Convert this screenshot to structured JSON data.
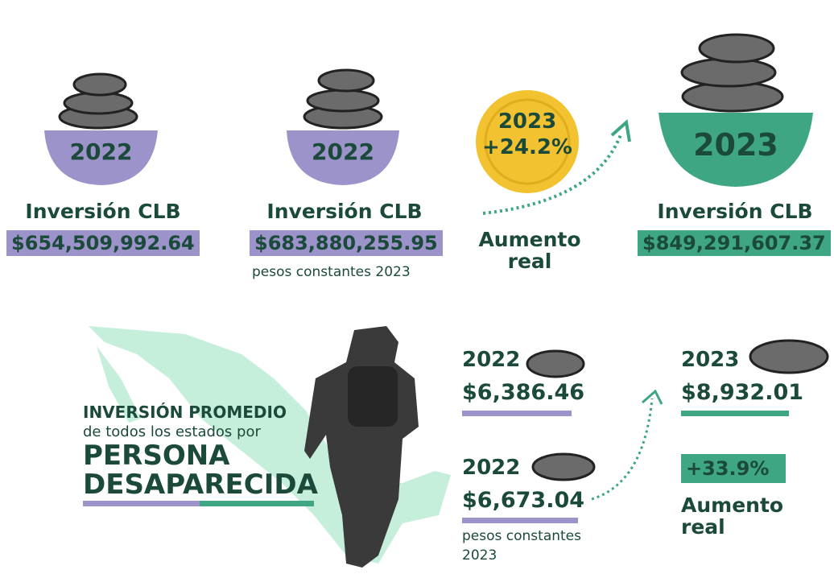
{
  "top": [
    {
      "year": "2022",
      "label": "Inversión CLB",
      "amount": "$654,509,992.64"
    },
    {
      "year": "2022",
      "label": "Inversión CLB",
      "amount": "$683,880,255.95",
      "note": "pesos constantes 2023"
    },
    {
      "year": "2023",
      "change": "+24.2%",
      "label": "Aumento real"
    },
    {
      "year": "2023",
      "label": "Inversión CLB",
      "amount": "$849,291,607.37"
    }
  ],
  "bottom": {
    "title": [
      "INVERSIÓN PROMEDIO",
      "de todos los estados por",
      "PERSONA",
      "DESAPARECIDA"
    ],
    "items": [
      {
        "year": "2022",
        "amount": "$6,386.46"
      },
      {
        "year": "2022",
        "amount": "$6,673.04",
        "note": "pesos constantes 2023"
      },
      {
        "year": "2023",
        "amount": "$8,932.01"
      }
    ],
    "change": "+33.9%",
    "change_label": "Aumento real"
  }
}
